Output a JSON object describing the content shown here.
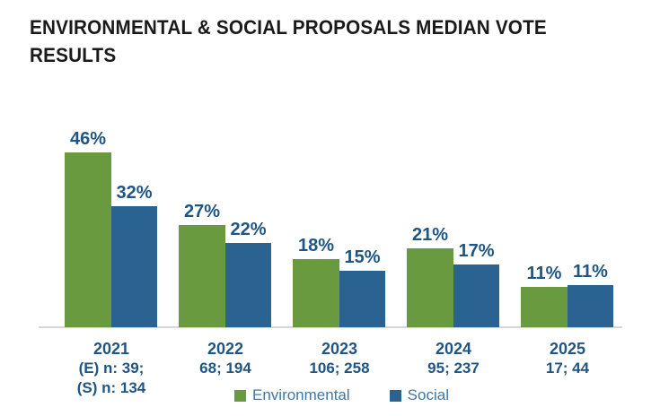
{
  "title_line1": "ENVIRONMENTAL & SOCIAL PROPOSALS MEDIAN VOTE",
  "title_line2": "RESULTS",
  "chart_data": {
    "type": "bar",
    "title": "ENVIRONMENTAL & SOCIAL PROPOSALS MEDIAN VOTE RESULTS",
    "categories": [
      "2021",
      "2022",
      "2023",
      "2024",
      "2025"
    ],
    "series": [
      {
        "name": "Environmental",
        "color": "#6A9A40",
        "values": [
          46,
          27,
          18,
          21,
          11
        ],
        "labels": [
          "46%",
          "27%",
          "18%",
          "21%",
          "11%"
        ]
      },
      {
        "name": "Social",
        "color": "#2A6291",
        "values": [
          32,
          22,
          15,
          17,
          11
        ],
        "labels": [
          "32%",
          "22%",
          "15%",
          "17%",
          "11%"
        ]
      }
    ],
    "x_sublabels": [
      [
        "(E) n: 39;",
        "(S) n: 134"
      ],
      [
        "68; 194"
      ],
      [
        "106; 258"
      ],
      [
        "95; 237"
      ],
      [
        "17; 44"
      ]
    ],
    "ylabel": "",
    "xlabel": "",
    "ylim": [
      0,
      50
    ],
    "grid": false,
    "legend_position": "bottom",
    "legend": {
      "items": [
        {
          "label": "Environmental",
          "color": "#6A9A40"
        },
        {
          "label": "Social",
          "color": "#2A6291"
        }
      ]
    },
    "label_color": "#1f5584",
    "axis_line_color": "#d6d6d6"
  }
}
